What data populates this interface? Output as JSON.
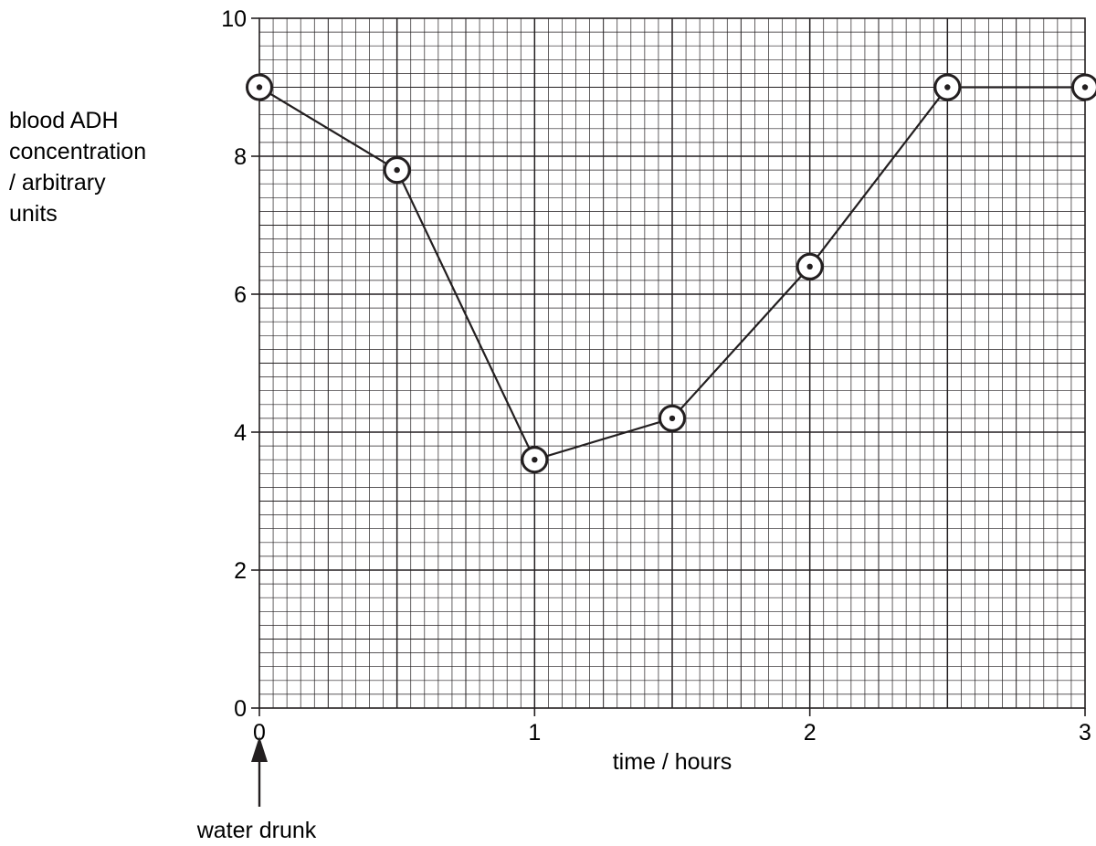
{
  "chart_data": {
    "type": "line",
    "title": "",
    "ylabel_lines": [
      "blood ADH",
      "concentration",
      "/ arbitrary",
      "units"
    ],
    "xlabel": "time / hours",
    "xlim": [
      0,
      3
    ],
    "ylim": [
      0,
      10
    ],
    "x_ticks": [
      "0",
      "1",
      "2",
      "3"
    ],
    "y_ticks": [
      "0",
      "2",
      "4",
      "6",
      "8",
      "10"
    ],
    "grid": true,
    "series": [
      {
        "x": [
          0,
          0.5,
          1,
          1.5,
          2,
          2.5,
          3
        ],
        "y": [
          9,
          7.8,
          3.6,
          4.2,
          6.4,
          9,
          9
        ]
      }
    ],
    "annotation": {
      "text": "water drunk",
      "x": 0
    },
    "colors": {
      "ink": "#231f20",
      "background": "#ffffff"
    }
  }
}
